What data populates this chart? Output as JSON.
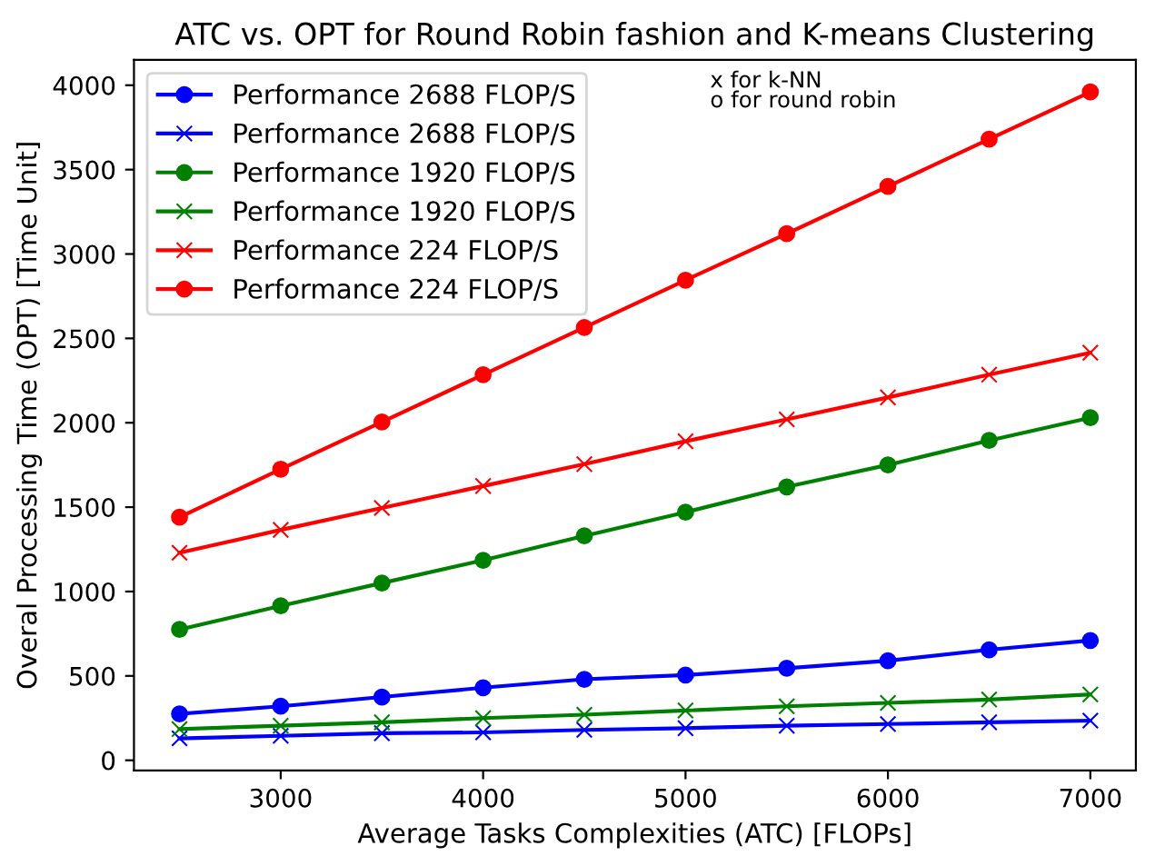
{
  "chart_data": {
    "type": "line",
    "title": "ATC vs. OPT for Round Robin fashion and K-means Clustering",
    "xlabel": "Average Tasks Complexities (ATC) [FLOPs]",
    "ylabel": "Overal Processing Time (OPT) [Time Unit]",
    "x": [
      2500,
      3000,
      3500,
      4000,
      4500,
      5000,
      5500,
      6000,
      6500,
      7000
    ],
    "series": [
      {
        "name": "Performance 2688 FLOP/S",
        "color": "#0000ff",
        "marker": "circle",
        "values": [
          275,
          320,
          375,
          430,
          480,
          505,
          545,
          590,
          655,
          710
        ]
      },
      {
        "name": "Performance 2688 FLOP/S",
        "color": "#0000ff",
        "marker": "cross",
        "values": [
          130,
          145,
          160,
          165,
          180,
          190,
          205,
          215,
          225,
          235
        ]
      },
      {
        "name": "Performance 1920 FLOP/S",
        "color": "#008000",
        "marker": "circle",
        "values": [
          775,
          915,
          1050,
          1185,
          1330,
          1470,
          1620,
          1750,
          1895,
          2030
        ]
      },
      {
        "name": "Performance 1920 FLOP/S",
        "color": "#008000",
        "marker": "cross",
        "values": [
          185,
          205,
          225,
          250,
          270,
          295,
          320,
          340,
          360,
          390
        ]
      },
      {
        "name": "Performance 224 FLOP/S",
        "color": "#ff0000",
        "marker": "cross",
        "values": [
          1230,
          1365,
          1495,
          1625,
          1755,
          1890,
          2020,
          2150,
          2285,
          2415
        ]
      },
      {
        "name": "Performance 224 FLOP/S",
        "color": "#ff0000",
        "marker": "circle",
        "values": [
          1440,
          1725,
          2005,
          2285,
          2565,
          2845,
          3120,
          3400,
          3680,
          3960
        ]
      }
    ],
    "annotations": [
      "x for k-NN",
      "o for round robin"
    ],
    "xlim": [
      2275,
      7225
    ],
    "ylim": [
      -60,
      4150
    ],
    "xticks": [
      3000,
      4000,
      5000,
      6000,
      7000
    ],
    "yticks": [
      0,
      500,
      1000,
      1500,
      2000,
      2500,
      3000,
      3500,
      4000
    ],
    "grid": false,
    "legend": "top left",
    "line_style": "solid"
  }
}
